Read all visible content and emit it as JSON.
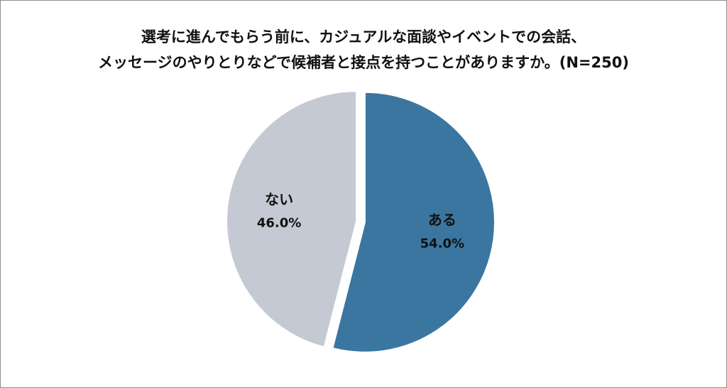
{
  "chart_data": {
    "type": "pie",
    "title_lines": [
      "選考に進んでもらう前に、カジュアルな面談やイベントでの会話、",
      "メッセージのやりとりなどで候補者と接点を持つことがありますか。(N=250)"
    ],
    "slices": [
      {
        "name": "ある",
        "value": 54.0,
        "label": "54.0%",
        "color": "#3a76a0"
      },
      {
        "name": "ない",
        "value": 46.0,
        "label": "46.0%",
        "color": "#c4c9d3"
      }
    ],
    "start_angle_deg": 0,
    "direction": "clockwise",
    "exploded": true
  }
}
